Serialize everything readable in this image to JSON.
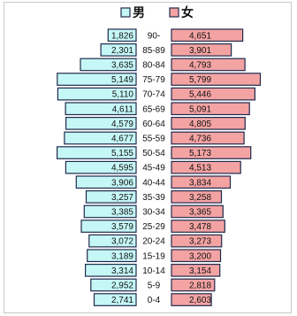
{
  "legend": {
    "male_label": "男",
    "female_label": "女"
  },
  "colors": {
    "male_fill": "#c6f7f7",
    "female_fill": "#f4a3a3",
    "bar_stroke": "#1f2a4d"
  },
  "chart_data": {
    "type": "bar",
    "orientation": "horizontal-population-pyramid",
    "title": "",
    "xlabel": "",
    "ylabel": "",
    "legend_position": "top-center",
    "grid": false,
    "xlim": [
      0,
      6000
    ],
    "categories": [
      "90-",
      "85-89",
      "80-84",
      "75-79",
      "70-74",
      "65-69",
      "60-64",
      "55-59",
      "50-54",
      "45-49",
      "40-44",
      "35-39",
      "30-34",
      "25-29",
      "20-24",
      "15-19",
      "10-14",
      "5-9",
      "0-4"
    ],
    "series": [
      {
        "name": "男",
        "values": [
          1826,
          2301,
          3635,
          5149,
          5110,
          4611,
          4579,
          4677,
          5155,
          4595,
          3906,
          3257,
          3385,
          3579,
          3072,
          3189,
          3314,
          2952,
          2741
        ],
        "labels": [
          "1,826",
          "2,301",
          "3,635",
          "5,149",
          "5,110",
          "4,611",
          "4,579",
          "4,677",
          "5,155",
          "4,595",
          "3,906",
          "3,257",
          "3,385",
          "3,579",
          "3,072",
          "3,189",
          "3,314",
          "2,952",
          "2,741"
        ]
      },
      {
        "name": "女",
        "values": [
          4651,
          3901,
          4793,
          5799,
          5446,
          5091,
          4805,
          4736,
          5173,
          4513,
          3834,
          3258,
          3365,
          3478,
          3273,
          3200,
          3154,
          2818,
          2603
        ],
        "labels": [
          "4,651",
          "3,901",
          "4,793",
          "5,799",
          "5,446",
          "5,091",
          "4,805",
          "4,736",
          "5,173",
          "4,513",
          "3,834",
          "3,258",
          "3,365",
          "3,478",
          "3,273",
          "3,200",
          "3,154",
          "2,818",
          "2,603"
        ]
      }
    ]
  }
}
